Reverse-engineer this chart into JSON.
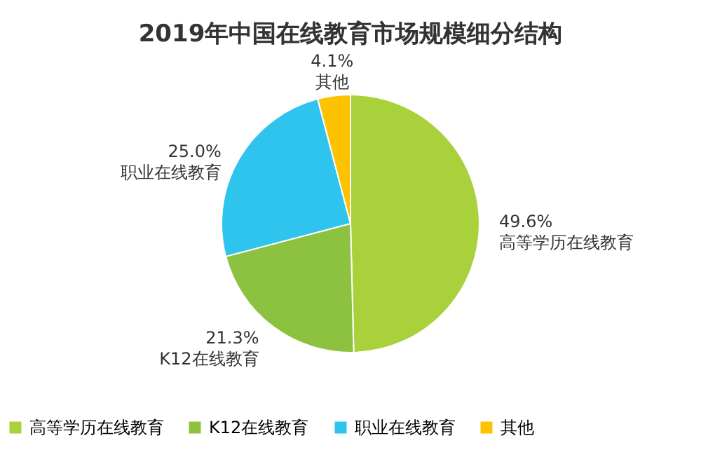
{
  "chart_data": {
    "type": "pie",
    "title": "2019年中国在线教育市场规模细分结构",
    "categories": [
      "高等学历在线教育",
      "K12在线教育",
      "职业在线教育",
      "其他"
    ],
    "values": [
      49.6,
      21.3,
      25.0,
      4.1
    ],
    "colors": [
      "#a9d13c",
      "#8cc23f",
      "#2ec4ee",
      "#fdc300"
    ],
    "value_labels": [
      "49.6%",
      "21.3%",
      "25.0%",
      "4.1%"
    ],
    "legend": "bottom"
  }
}
